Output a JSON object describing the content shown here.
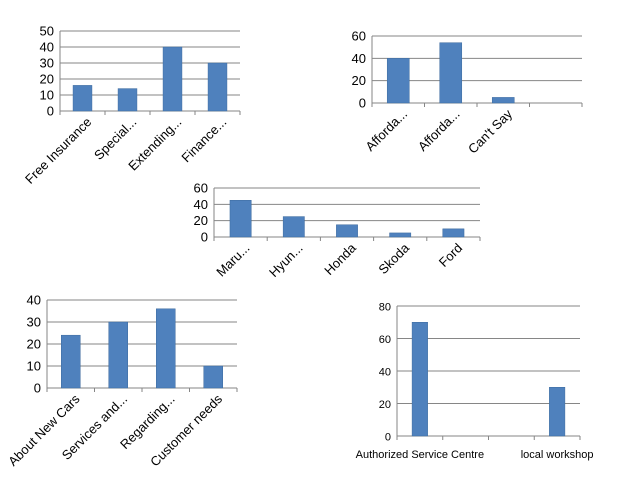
{
  "colors": {
    "bar": "#4F81BD",
    "bar_edge": "#3C6A9E",
    "grid": "#868686",
    "axis": "#868686"
  },
  "chart_data": [
    {
      "type": "bar",
      "categories": [
        "Free Insurance",
        "Special...",
        "Extending...",
        "Finance..."
      ],
      "values": [
        16,
        14,
        40,
        30
      ],
      "ylim": [
        0,
        50
      ],
      "yticks": [
        0,
        10,
        20,
        30,
        40,
        50
      ],
      "title": "",
      "xlabel": "",
      "ylabel": "",
      "grid": true,
      "tick_rotation": -45
    },
    {
      "type": "bar",
      "categories": [
        "Afforda...",
        "Afforda...",
        "Can't Say",
        ""
      ],
      "values": [
        40,
        54,
        5,
        0
      ],
      "ylim": [
        0,
        60
      ],
      "yticks": [
        0,
        20,
        40,
        60
      ],
      "title": "",
      "xlabel": "",
      "ylabel": "",
      "grid": true,
      "tick_rotation": -45
    },
    {
      "type": "bar",
      "categories": [
        "Maru...",
        "Hyun...",
        "Honda",
        "Skoda",
        "Ford"
      ],
      "values": [
        45,
        25,
        15,
        5,
        10
      ],
      "ylim": [
        0,
        60
      ],
      "yticks": [
        0,
        20,
        40,
        60
      ],
      "title": "",
      "xlabel": "",
      "ylabel": "",
      "grid": true,
      "tick_rotation": -45
    },
    {
      "type": "bar",
      "categories": [
        "About New Cars",
        "Services and...",
        "Regarding...",
        "Customer needs"
      ],
      "values": [
        24,
        30,
        36,
        10
      ],
      "ylim": [
        0,
        40
      ],
      "yticks": [
        0,
        10,
        20,
        30,
        40
      ],
      "title": "",
      "xlabel": "",
      "ylabel": "",
      "grid": true,
      "tick_rotation": -45
    },
    {
      "type": "bar",
      "categories": [
        "Authorized Service Centre",
        "",
        "",
        "local workshop"
      ],
      "values": [
        70,
        0,
        0,
        30
      ],
      "ylim": [
        0,
        80
      ],
      "yticks": [
        0,
        20,
        40,
        60,
        80
      ],
      "title": "",
      "xlabel": "",
      "ylabel": "",
      "grid": true,
      "tick_rotation": 0
    }
  ]
}
